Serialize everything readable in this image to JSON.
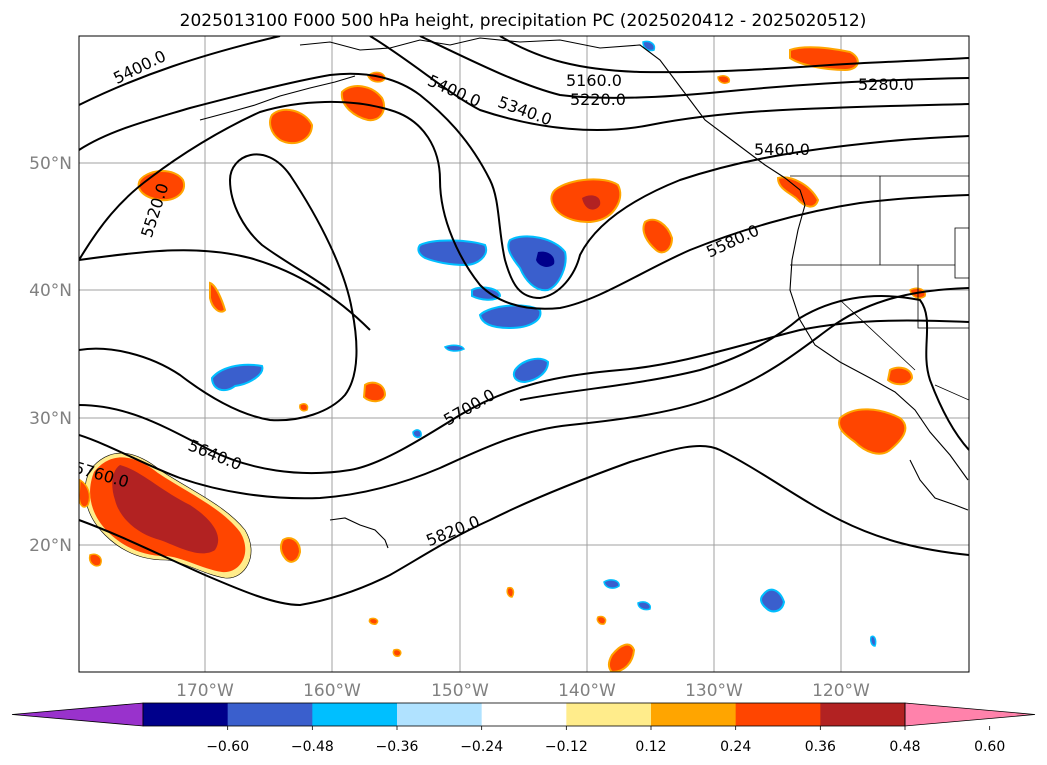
{
  "title": "2025013100 F000 500 hPa height, precipitation PC (2025020412 - 2025020512)",
  "map": {
    "lat_labels": [
      "50°N",
      "40°N",
      "30°N",
      "20°N"
    ],
    "lon_labels": [
      "170°W",
      "160°W",
      "150°W",
      "140°W",
      "130°W",
      "120°W"
    ],
    "contour_labels": [
      "5400.0",
      "5400.0",
      "5340.0",
      "5160.0",
      "5220.0",
      "5280.0",
      "5520.0",
      "5460.0",
      "5580.0",
      "5700.0",
      "5640.0",
      "5760.0",
      "5820.0"
    ]
  },
  "colorbar": {
    "ticks": [
      "−0.60",
      "−0.48",
      "−0.36",
      "−0.24",
      "−0.12",
      "0.12",
      "0.24",
      "0.36",
      "0.48",
      "0.60"
    ],
    "colors": [
      "#9932cc",
      "#00008b",
      "#3a5fcd",
      "#00bfff",
      "#b0e2ff",
      "#ffffff",
      "#ffec8b",
      "#ffa500",
      "#ff4500",
      "#b22222",
      "#ff82ab"
    ]
  },
  "colors": {
    "neg_strong": "#00008b",
    "neg_mid": "#3a5fcd",
    "neg_light": "#00bfff",
    "pos_light": "#ffec8b",
    "pos_mid": "#ffa500",
    "pos_strong": "#ff4500",
    "pos_max": "#b22222"
  }
}
